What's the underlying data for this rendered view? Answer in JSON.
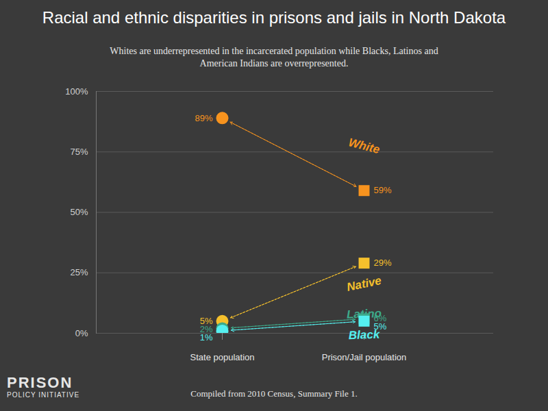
{
  "chart_data": {
    "type": "slope",
    "title": "Racial and ethnic disparities in prisons and jails in North Dakota",
    "subtitle": "Whites are underrepresented in the incarcerated population while Blacks, Latinos and American Indians are overrepresented.",
    "caption": "Compiled from 2010 Census, Summary File 1.",
    "logo": [
      "PRISON",
      "POLICY INITIATIVE"
    ],
    "categories": [
      "State population",
      "Prison/Jail population"
    ],
    "series": [
      {
        "name": "White",
        "color": "#f7931e",
        "values": [
          89,
          59
        ],
        "value_labels": [
          "89%",
          "59%"
        ]
      },
      {
        "name": "Native",
        "color": "#f5c02c",
        "values": [
          5,
          29
        ],
        "value_labels": [
          "5%",
          "29%"
        ]
      },
      {
        "name": "Latino",
        "color": "#3daa8a",
        "values": [
          2,
          6
        ],
        "value_labels": [
          "2%",
          "6%"
        ]
      },
      {
        "name": "Black",
        "color": "#55f0f0",
        "values": [
          1,
          5
        ],
        "value_labels": [
          "1%",
          "5%"
        ]
      }
    ],
    "ylim": [
      0,
      100
    ],
    "yticks": [
      {
        "value": 0,
        "label": "0%"
      },
      {
        "value": 25,
        "label": "25%"
      },
      {
        "value": 50,
        "label": "50%"
      },
      {
        "value": 75,
        "label": "75%"
      },
      {
        "value": 100,
        "label": "100%"
      }
    ],
    "grid": true,
    "data_labels": true
  }
}
